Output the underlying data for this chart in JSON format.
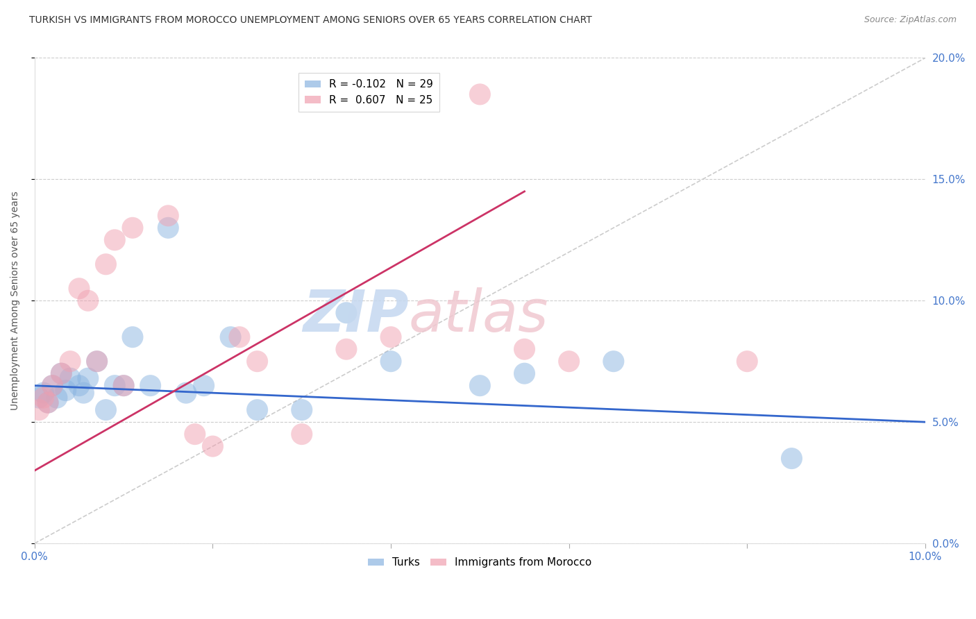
{
  "title": "TURKISH VS IMMIGRANTS FROM MOROCCO UNEMPLOYMENT AMONG SENIORS OVER 65 YEARS CORRELATION CHART",
  "source": "Source: ZipAtlas.com",
  "ylabel": "Unemployment Among Seniors over 65 years",
  "xlim": [
    0.0,
    10.0
  ],
  "ylim": [
    0.0,
    20.0
  ],
  "yticks": [
    0.0,
    5.0,
    10.0,
    15.0,
    20.0
  ],
  "xticks": [
    0.0,
    2.0,
    4.0,
    6.0,
    8.0,
    10.0
  ],
  "background_color": "#ffffff",
  "grid_color": "#cccccc",
  "legend_r_turks": "-0.102",
  "legend_n_turks": "29",
  "legend_r_morocco": "0.607",
  "legend_n_morocco": "25",
  "turks_color": "#8ab4e0",
  "morocco_color": "#f0a0b0",
  "turks_line_color": "#3366cc",
  "morocco_line_color": "#cc3366",
  "ref_line_color": "#cccccc",
  "turks_x": [
    0.05,
    0.1,
    0.15,
    0.2,
    0.25,
    0.3,
    0.35,
    0.4,
    0.5,
    0.55,
    0.6,
    0.7,
    0.8,
    0.9,
    1.0,
    1.1,
    1.3,
    1.5,
    1.7,
    1.9,
    2.2,
    2.5,
    3.0,
    3.5,
    4.0,
    5.0,
    5.5,
    6.5,
    8.5
  ],
  "turks_y": [
    6.0,
    6.2,
    5.8,
    6.5,
    6.0,
    7.0,
    6.3,
    6.8,
    6.5,
    6.2,
    6.8,
    7.5,
    5.5,
    6.5,
    6.5,
    8.5,
    6.5,
    13.0,
    6.2,
    6.5,
    8.5,
    5.5,
    5.5,
    9.5,
    7.5,
    6.5,
    7.0,
    7.5,
    3.5
  ],
  "morocco_x": [
    0.05,
    0.1,
    0.15,
    0.2,
    0.3,
    0.4,
    0.5,
    0.6,
    0.7,
    0.8,
    0.9,
    1.0,
    1.1,
    1.5,
    1.8,
    2.0,
    2.3,
    2.5,
    3.0,
    3.5,
    4.0,
    5.0,
    5.5,
    6.0,
    8.0
  ],
  "morocco_y": [
    5.5,
    6.0,
    5.8,
    6.5,
    7.0,
    7.5,
    10.5,
    10.0,
    7.5,
    11.5,
    12.5,
    6.5,
    13.0,
    13.5,
    4.5,
    4.0,
    8.5,
    7.5,
    4.5,
    8.0,
    8.5,
    18.5,
    8.0,
    7.5,
    7.5
  ],
  "turks_line_x0": 0.0,
  "turks_line_y0": 6.5,
  "turks_line_x1": 10.0,
  "turks_line_y1": 5.0,
  "morocco_line_x0": 0.0,
  "morocco_line_y0": 3.0,
  "morocco_line_x1": 5.5,
  "morocco_line_y1": 14.5
}
